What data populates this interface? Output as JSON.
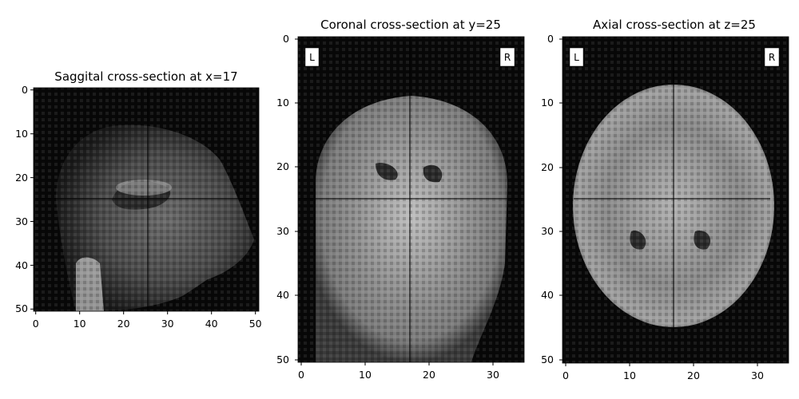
{
  "panels": [
    {
      "id": "sagittal",
      "title": "Saggital cross-section at x=17",
      "x_ticks": [
        "0",
        "10",
        "20",
        "30",
        "40",
        "50"
      ],
      "y_ticks": [
        "0",
        "10",
        "20",
        "30",
        "40",
        "50"
      ],
      "orientation_labels": [],
      "crosshair": {
        "x": 25.5,
        "y": 25
      }
    },
    {
      "id": "coronal",
      "title": "Coronal cross-section at y=25",
      "x_ticks": [
        "0",
        "10",
        "20",
        "30"
      ],
      "y_ticks": [
        "0",
        "10",
        "20",
        "30",
        "40",
        "50"
      ],
      "orientation_labels": [
        "L",
        "R"
      ],
      "crosshair": {
        "x": 17,
        "y": 25
      }
    },
    {
      "id": "axial",
      "title": "Axial cross-section at z=25",
      "x_ticks": [
        "0",
        "10",
        "20",
        "30"
      ],
      "y_ticks": [
        "0",
        "10",
        "20",
        "30",
        "40",
        "50"
      ],
      "orientation_labels": [
        "L",
        "R"
      ],
      "crosshair": {
        "x": 17,
        "y": 25
      }
    }
  ],
  "colormap": "gray"
}
